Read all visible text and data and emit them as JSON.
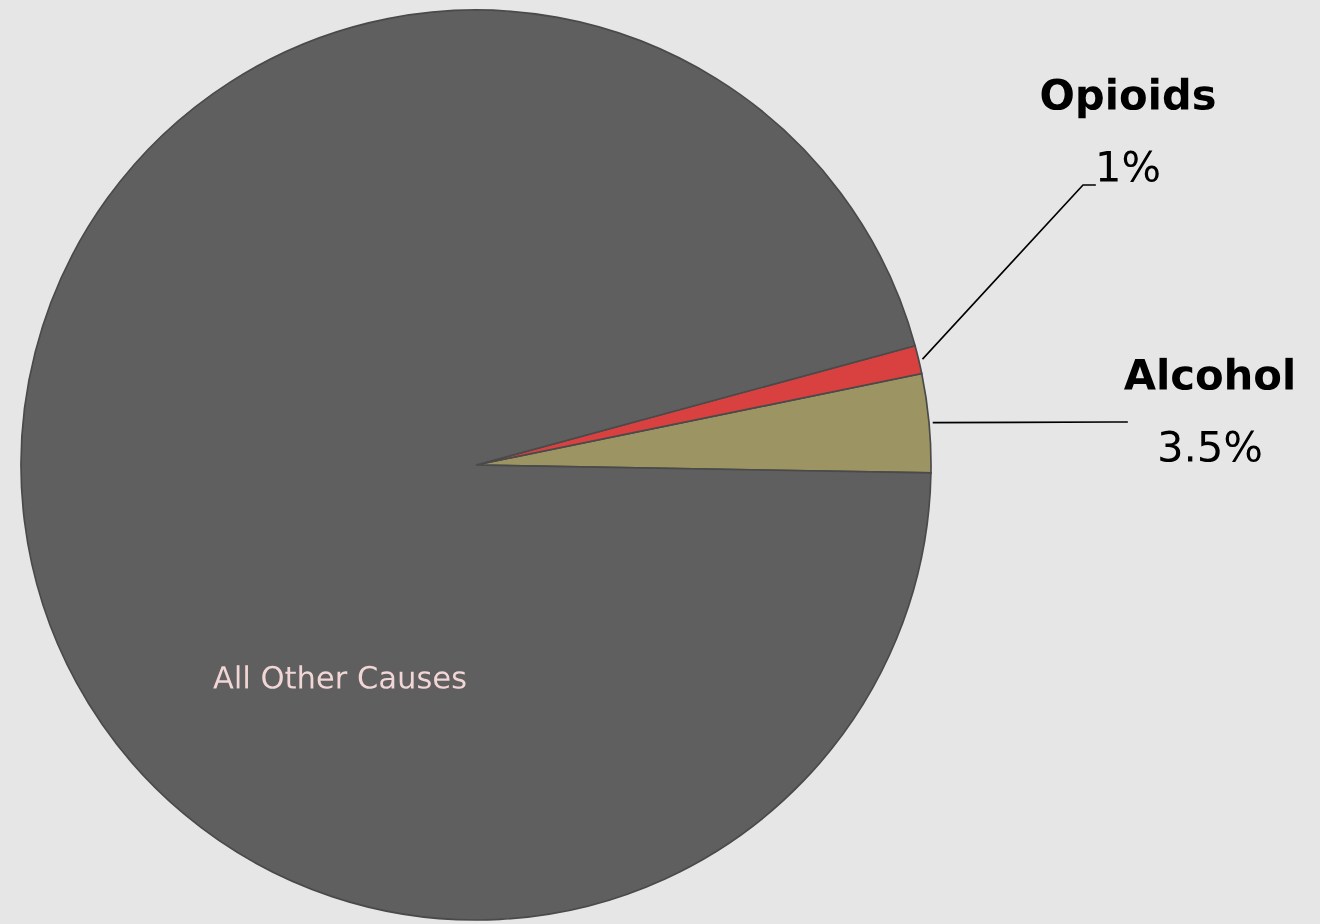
{
  "chart_data": {
    "type": "pie",
    "categories": [
      "Alcohol",
      "Opioids",
      "All Other Causes"
    ],
    "values": [
      3.5,
      1,
      95.5
    ],
    "colors": [
      "#9c9463",
      "#d94040",
      "#5f5f5f"
    ],
    "value_labels": [
      "3.5%",
      "1%",
      null
    ],
    "legend": false
  }
}
